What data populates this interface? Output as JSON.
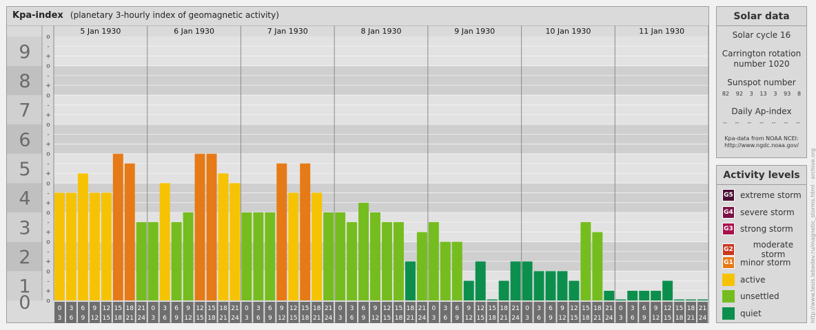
{
  "chart": {
    "title": "Kpa-index",
    "subtitle": "(planetary 3-hourly index of geomagnetic activity)"
  },
  "chart_data": {
    "type": "bar",
    "y_levels": [
      "0",
      "1",
      "2",
      "3",
      "4",
      "5",
      "6",
      "7",
      "8",
      "9"
    ],
    "sub_ticks": [
      "-",
      "o",
      "+"
    ],
    "ylim": [
      0,
      9
    ],
    "days": [
      "5 Jan 1930",
      "6 Jan 1930",
      "7 Jan 1930",
      "8 Jan 1930",
      "9 Jan 1930",
      "10 Jan 1930",
      "11 Jan 1930"
    ],
    "interval_start": [
      "0",
      "3",
      "6",
      "9",
      "12",
      "15",
      "18",
      "21"
    ],
    "interval_end": [
      "3",
      "6",
      "9",
      "12",
      "15",
      "18",
      "21",
      "24"
    ],
    "values": [
      [
        3.67,
        3.67,
        4.33,
        3.67,
        3.67,
        5.0,
        4.67,
        2.67
      ],
      [
        2.67,
        4.0,
        2.67,
        3.0,
        5.0,
        5.0,
        4.33,
        4.0
      ],
      [
        3.0,
        3.0,
        3.0,
        4.67,
        3.67,
        4.67,
        3.67,
        3.0
      ],
      [
        3.0,
        2.67,
        3.33,
        3.0,
        2.67,
        2.67,
        1.33,
        2.33
      ],
      [
        2.67,
        2.0,
        2.0,
        0.67,
        1.33,
        0.0,
        0.67,
        1.33
      ],
      [
        1.33,
        1.0,
        1.0,
        1.0,
        0.67,
        2.67,
        2.33,
        0.33
      ],
      [
        0.0,
        0.33,
        0.33,
        0.33,
        0.67,
        0.0,
        0.0,
        0.0
      ]
    ]
  },
  "colors": {
    "quiet": "#0c8f4d",
    "unsettled": "#75bd1e",
    "active": "#f6c304",
    "minor_storm": "#e67a16",
    "moderate_storm": "#c8381f",
    "strong_storm": "#a8104d",
    "severe_storm": "#7b1146",
    "extreme_storm": "#4a0d33"
  },
  "solar": {
    "title": "Solar data",
    "cycle": "Solar cycle 16",
    "carrington_1": "Carrington rotation",
    "carrington_2": "number 1020",
    "sunspot_title": "Sunspot number",
    "sunspots": [
      "82",
      "92",
      "3",
      "13",
      "3",
      "93",
      "8"
    ],
    "ap_title": "Daily Ap-index",
    "ap_values": [
      "--",
      "--",
      "--",
      "--",
      "--",
      "--",
      "--"
    ],
    "source_1": "Kpa-data from NOAA NCEI:",
    "source_2": "http://www.ngdc.noaa.gov/"
  },
  "activity": {
    "title": "Activity levels",
    "levels": [
      {
        "code": "G5",
        "label": "extreme storm",
        "color": "#4a0d33"
      },
      {
        "code": "G4",
        "label": "severe storm",
        "color": "#7b1146"
      },
      {
        "code": "G3",
        "label": "strong storm",
        "color": "#a8104d"
      },
      {
        "code": "G2",
        "label": "moderate storm",
        "color": "#c8381f"
      },
      {
        "code": "G1",
        "label": "minor storm",
        "color": "#e67a16"
      },
      {
        "code": "",
        "label": "active",
        "color": "#f6c304"
      },
      {
        "code": "",
        "label": "unsettled",
        "color": "#75bd1e"
      },
      {
        "code": "",
        "label": "quiet",
        "color": "#0c8f4d"
      }
    ]
  },
  "credit": "http://www.tesis.lebedev.ru/magnetic_storms.html · archive.org"
}
